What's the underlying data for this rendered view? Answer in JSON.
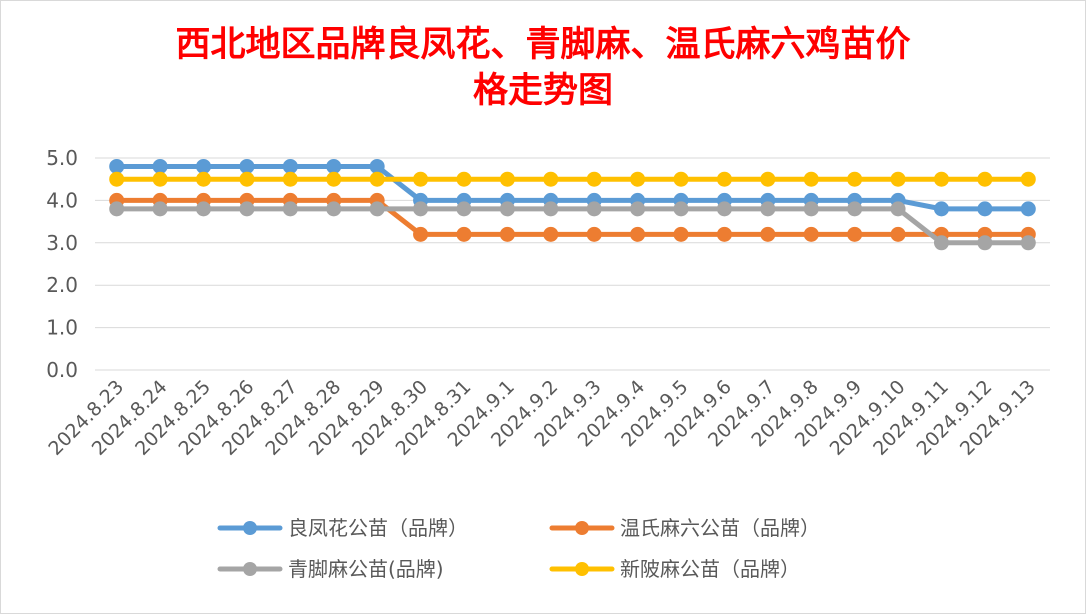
{
  "chart_data": {
    "type": "line",
    "title_line1": "西北地区品牌良凤花、青脚麻、温氏麻六鸡苗价",
    "title_line2": "格走势图",
    "categories": [
      "2024.8.23",
      "2024.8.24",
      "2024.8.25",
      "2024.8.26",
      "2024.8.27",
      "2024.8.28",
      "2024.8.29",
      "2024.8.30",
      "2024.8.31",
      "2024.9.1",
      "2024.9.2",
      "2024.9.3",
      "2024.9.4",
      "2024.9.5",
      "2024.9.6",
      "2024.9.7",
      "2024.9.8",
      "2024.9.9",
      "2024.9.10",
      "2024.9.11",
      "2024.9.12",
      "2024.9.13"
    ],
    "y_ticks": [
      "0.0",
      "1.0",
      "2.0",
      "3.0",
      "4.0",
      "5.0"
    ],
    "ylim": [
      0,
      5
    ],
    "grid": true,
    "legend_position": "bottom",
    "series": [
      {
        "name": "良凤花公苗（品牌）",
        "color": "#5b9bd5",
        "values": [
          4.8,
          4.8,
          4.8,
          4.8,
          4.8,
          4.8,
          4.8,
          4.0,
          4.0,
          4.0,
          4.0,
          4.0,
          4.0,
          4.0,
          4.0,
          4.0,
          4.0,
          4.0,
          4.0,
          3.8,
          3.8,
          3.8
        ]
      },
      {
        "name": "温氏麻六公苗（品牌）",
        "color": "#ed7d31",
        "values": [
          4.0,
          4.0,
          4.0,
          4.0,
          4.0,
          4.0,
          4.0,
          3.2,
          3.2,
          3.2,
          3.2,
          3.2,
          3.2,
          3.2,
          3.2,
          3.2,
          3.2,
          3.2,
          3.2,
          3.2,
          3.2,
          3.2
        ]
      },
      {
        "name": "青脚麻公苗(品牌)",
        "color": "#a5a5a5",
        "values": [
          3.8,
          3.8,
          3.8,
          3.8,
          3.8,
          3.8,
          3.8,
          3.8,
          3.8,
          3.8,
          3.8,
          3.8,
          3.8,
          3.8,
          3.8,
          3.8,
          3.8,
          3.8,
          3.8,
          3.0,
          3.0,
          3.0
        ]
      },
      {
        "name": "新陂麻公苗（品牌）",
        "color": "#ffc000",
        "values": [
          4.5,
          4.5,
          4.5,
          4.5,
          4.5,
          4.5,
          4.5,
          4.5,
          4.5,
          4.5,
          4.5,
          4.5,
          4.5,
          4.5,
          4.5,
          4.5,
          4.5,
          4.5,
          4.5,
          4.5,
          4.5,
          4.5
        ]
      }
    ]
  }
}
